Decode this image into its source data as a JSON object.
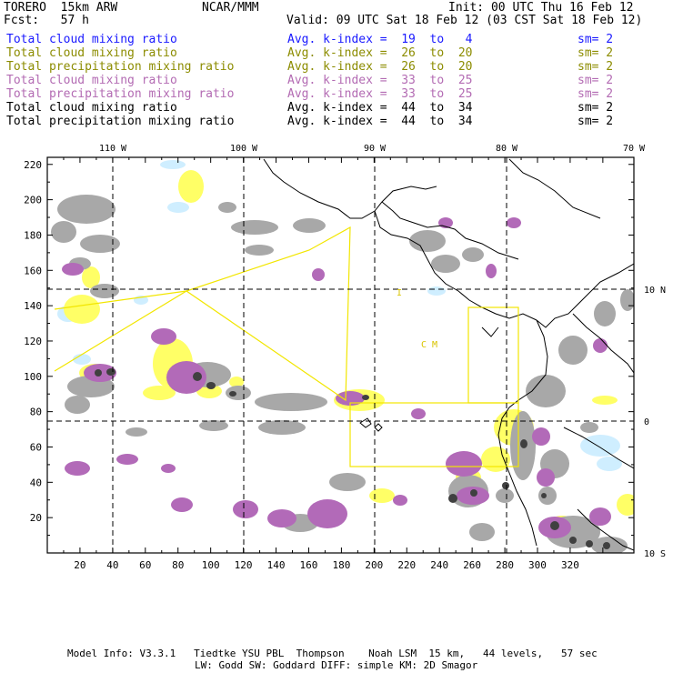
{
  "header": {
    "model": "TORERO  15km ARW",
    "org": "NCAR/MMM",
    "init": "Init: 00 UTC Thu 16 Feb 12",
    "fcst": "Fcst:   57 h",
    "valid": "Valid: 09 UTC Sat 18 Feb 12 (03 CST Sat 18 Feb 12)"
  },
  "legend": [
    {
      "field": "Total cloud mixing ratio",
      "index": "Avg. k-index =  19  to   4",
      "sm": "sm= 2",
      "color": "#1a1aff"
    },
    {
      "field": "Total cloud mixing ratio",
      "index": "Avg. k-index =  26  to  20",
      "sm": "sm= 2",
      "color": "#8c8c00"
    },
    {
      "field": "Total precipitation mixing ratio",
      "index": "Avg. k-index =  26  to  20",
      "sm": "sm= 2",
      "color": "#8c8c00"
    },
    {
      "field": "Total cloud mixing ratio",
      "index": "Avg. k-index =  33  to  25",
      "sm": "sm= 2",
      "color": "#b36bb3"
    },
    {
      "field": "Total precipitation mixing ratio",
      "index": "Avg. k-index =  33  to  25",
      "sm": "sm= 2",
      "color": "#b36bb3"
    },
    {
      "field": "Total cloud mixing ratio",
      "index": "Avg. k-index =  44  to  34",
      "sm": "sm= 2",
      "color": "#000000"
    },
    {
      "field": "Total precipitation mixing ratio",
      "index": "Avg. k-index =  44  to  34",
      "sm": "sm= 2",
      "color": "#000000"
    }
  ],
  "map": {
    "grid_x_ticks": [
      "20",
      "40",
      "60",
      "80",
      "100",
      "120",
      "140",
      "160",
      "180",
      "200",
      "220",
      "240",
      "260",
      "280",
      "300",
      "320"
    ],
    "grid_y_ticks": [
      "20",
      "40",
      "60",
      "80",
      "100",
      "120",
      "140",
      "160",
      "180",
      "200",
      "220"
    ],
    "lon_labels": [
      "110 W",
      "100 W",
      "90 W",
      "80 W",
      "70 W"
    ],
    "lat_labels": [
      "10 N",
      "0",
      "10 S"
    ],
    "annotation": "C M",
    "annotation_small": "I"
  },
  "footer": {
    "line1": "Model Info: V3.3.1   Tiedtke YSU PBL  Thompson    Noah LSM  15 km,   44 levels,   57 sec",
    "line2": "LW: Godd SW: Goddard DIFF: simple KM: 2D Smagor"
  }
}
